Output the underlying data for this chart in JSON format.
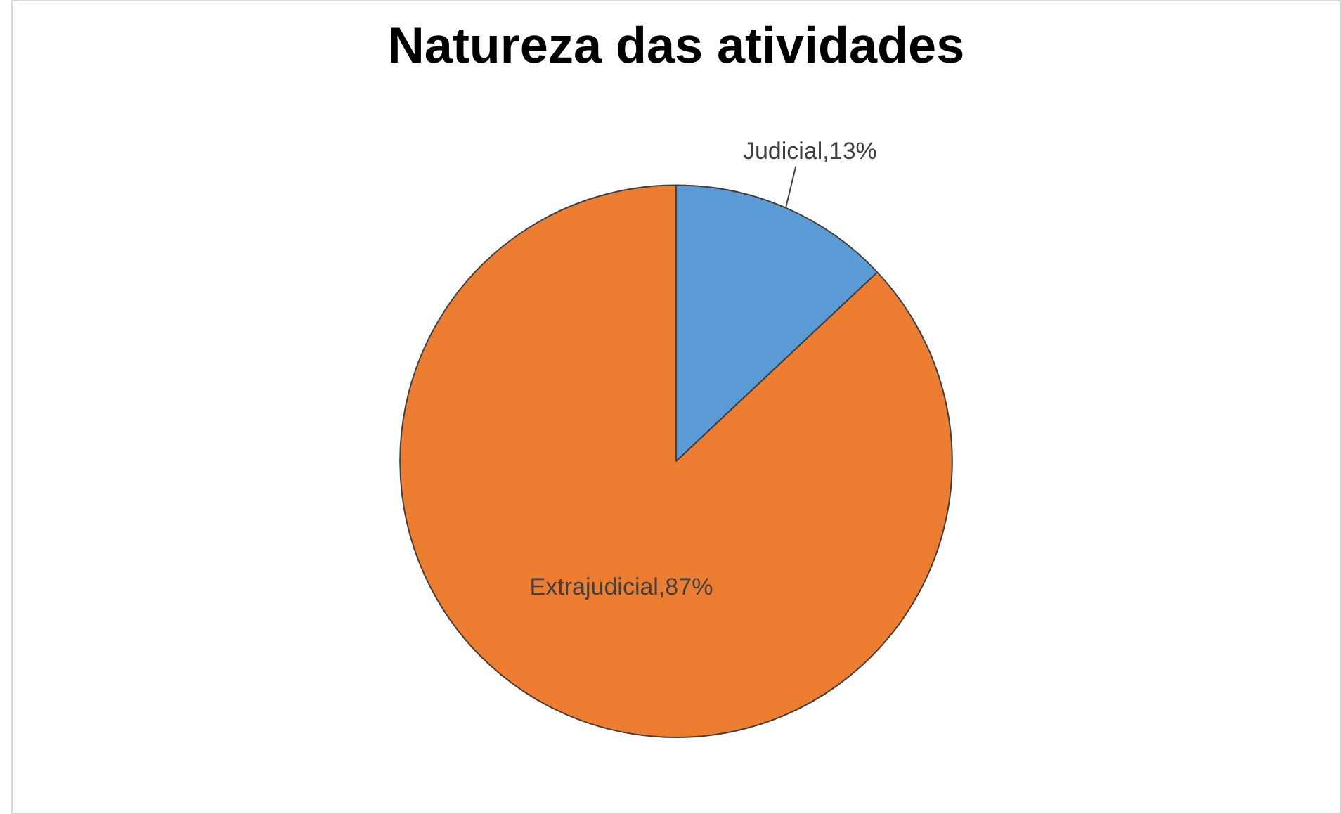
{
  "chart_data": {
    "type": "pie",
    "title": "Natureza das atividades",
    "categories": [
      "Judicial",
      "Extrajudicial"
    ],
    "values": [
      13,
      87
    ],
    "colors": [
      "#5b9bd5",
      "#ed7d31"
    ],
    "value_labels": [
      "13%",
      "87%"
    ],
    "legend": false
  }
}
